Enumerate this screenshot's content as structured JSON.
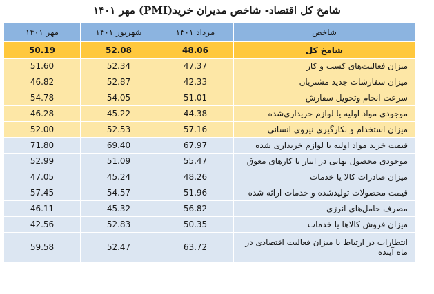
{
  "title": "شامخ کل اقتصاد- شاخص مدیران خرید(PMI) مهر ۱۴۰۱",
  "headers": {
    "name": "شاخص",
    "col1": "مرداد ۱۴۰۱",
    "col2": "شهریور ۱۴۰۱",
    "col3": "مهر ۱۴۰۱"
  },
  "total": {
    "name": "شامخ کل",
    "v1": "48.06",
    "v2": "52.08",
    "v3": "50.19"
  },
  "rows": [
    {
      "name": "میزان فعالیت‌های کسب و کار",
      "v1": "47.37",
      "v2": "52.34",
      "v3": "51.60"
    },
    {
      "name": "میزان سفارشات جدید مشتریان",
      "v1": "42.33",
      "v2": "52.87",
      "v3": "46.82"
    },
    {
      "name": "سرعت انجام وتحویل سفارش",
      "v1": "51.01",
      "v2": "54.05",
      "v3": "54.78"
    },
    {
      "name": "موجودی مواد اولیه یا لوازم خریداری‌شده",
      "v1": "44.38",
      "v2": "45.22",
      "v3": "46.28"
    },
    {
      "name": "میزان استخدام و بکارگیری نیروی انسانی",
      "v1": "57.16",
      "v2": "52.53",
      "v3": "52.00"
    },
    {
      "name": "قیمت خرید مواد اولیه یا لوازم خریداری شده",
      "v1": "67.97",
      "v2": "69.40",
      "v3": "71.80"
    },
    {
      "name": "موجودی محصول نهایی در انبار یا کارهای معوق",
      "v1": "55.47",
      "v2": "51.09",
      "v3": "52.99"
    },
    {
      "name": "میزان صادرات کالا یا خدمات",
      "v1": "48.26",
      "v2": "45.24",
      "v3": "47.05"
    },
    {
      "name": "قیمت محصولات تولیدشده و خدمات ارائه شده",
      "v1": "51.96",
      "v2": "54.57",
      "v3": "57.45"
    },
    {
      "name": "مصرف حامل‌های انرژی",
      "v1": "56.82",
      "v2": "45.32",
      "v3": "46.11"
    },
    {
      "name": "میزان فروش کالاها یا خدمات",
      "v1": "50.35",
      "v2": "52.83",
      "v3": "42.56"
    },
    {
      "name": "انتظارات در ارتباط با میزان فعالیت اقتصادی در ماه آینده",
      "v1": "63.72",
      "v2": "52.47",
      "v3": "59.58"
    }
  ]
}
